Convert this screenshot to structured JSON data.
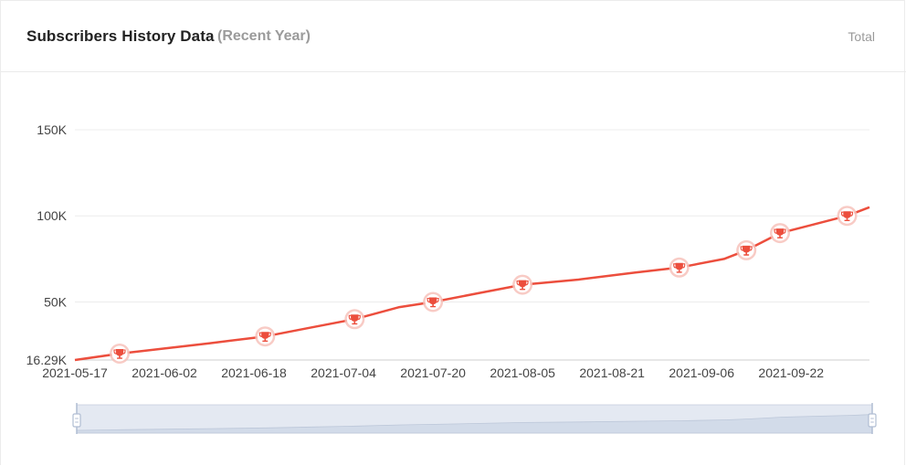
{
  "header": {
    "title": "Subscribers History Data",
    "subtitle": "(Recent Year)",
    "total_label": "Total"
  },
  "colors": {
    "line": "#ec4e3d",
    "milestone_fill": "#ec4e3d",
    "milestone_halo": "#f7c2bb",
    "grid": "#ececec",
    "zoom_fill": "#dde3ee",
    "zoom_handle": "#b0bdd3"
  },
  "chart_data": {
    "type": "line",
    "title": "",
    "xlabel": "",
    "ylabel": "",
    "y_min": 16290,
    "ylim": [
      16290,
      150000
    ],
    "y_ticks": [
      {
        "value": 16290,
        "label": "16.29K"
      },
      {
        "value": 50000,
        "label": "50K"
      },
      {
        "value": 100000,
        "label": "100K"
      },
      {
        "value": 150000,
        "label": "150K"
      }
    ],
    "x_ticks": [
      "2021-05-17",
      "2021-06-02",
      "2021-06-18",
      "2021-07-04",
      "2021-07-20",
      "2021-08-05",
      "2021-08-21",
      "2021-09-06",
      "2021-09-22"
    ],
    "grid": true,
    "legend": "none",
    "series": [
      {
        "name": "",
        "points": [
          {
            "x": "2021-05-17",
            "y": 16290
          },
          {
            "x": "2021-05-25",
            "y": 20000
          },
          {
            "x": "2021-06-02",
            "y": 23000
          },
          {
            "x": "2021-06-10",
            "y": 26000
          },
          {
            "x": "2021-06-20",
            "y": 30000
          },
          {
            "x": "2021-06-28",
            "y": 35000
          },
          {
            "x": "2021-07-06",
            "y": 40000
          },
          {
            "x": "2021-07-14",
            "y": 47000
          },
          {
            "x": "2021-07-20",
            "y": 50000
          },
          {
            "x": "2021-07-28",
            "y": 55000
          },
          {
            "x": "2021-08-05",
            "y": 60000
          },
          {
            "x": "2021-08-15",
            "y": 63000
          },
          {
            "x": "2021-08-25",
            "y": 67000
          },
          {
            "x": "2021-09-02",
            "y": 70000
          },
          {
            "x": "2021-09-10",
            "y": 75000
          },
          {
            "x": "2021-09-14",
            "y": 80000
          },
          {
            "x": "2021-09-20",
            "y": 90000
          },
          {
            "x": "2021-09-26",
            "y": 95000
          },
          {
            "x": "2021-10-02",
            "y": 100000
          },
          {
            "x": "2021-10-06",
            "y": 105000
          }
        ]
      }
    ],
    "milestones": [
      {
        "x": "2021-05-25",
        "y": 20000
      },
      {
        "x": "2021-06-20",
        "y": 30000
      },
      {
        "x": "2021-07-06",
        "y": 40000
      },
      {
        "x": "2021-07-20",
        "y": 50000
      },
      {
        "x": "2021-08-05",
        "y": 60000
      },
      {
        "x": "2021-09-02",
        "y": 70000
      },
      {
        "x": "2021-09-14",
        "y": 80000
      },
      {
        "x": "2021-09-20",
        "y": 90000
      },
      {
        "x": "2021-10-02",
        "y": 100000
      }
    ],
    "milestone_icon": "trophy-icon",
    "zoom_range": [
      "2021-05-17",
      "2021-10-06"
    ]
  }
}
